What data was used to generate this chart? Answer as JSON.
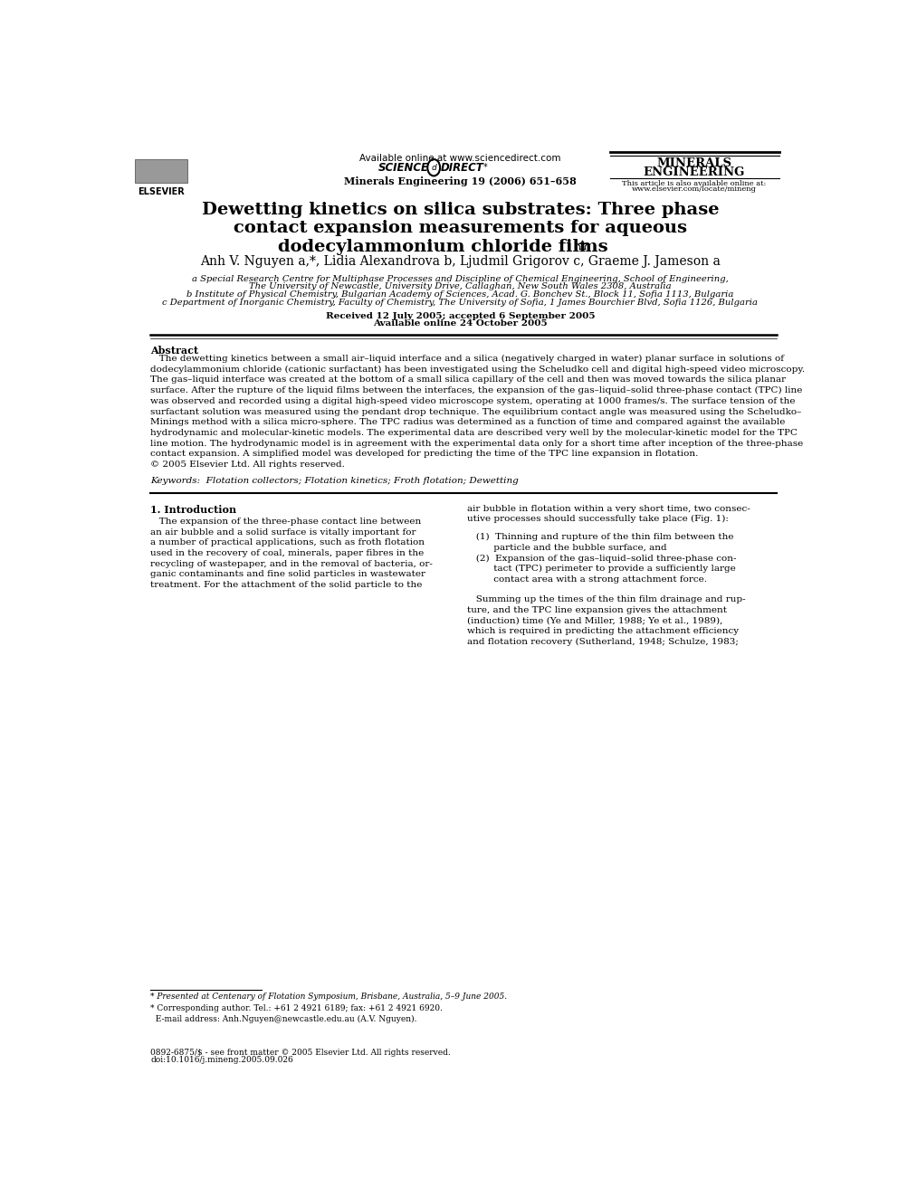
{
  "fig_width": 9.92,
  "fig_height": 13.23,
  "bg_color": "#ffffff",
  "header": {
    "available_online": "Available online at www.sciencedirect.com",
    "journal_info": "Minerals Engineering 19 (2006) 651–658",
    "journal_name_line1": "MINERALS",
    "journal_name_line2": "ENGINEERING",
    "also_available": "This article is also available online at:",
    "url": "www.elsevier.com/locate/mineng",
    "elsevier_text": "ELSEVIER"
  },
  "title_main": "Dewetting kinetics on silica substrates: Three phase",
  "title_line2": "contact expansion measurements for aqueous",
  "title_line3": "dodecylammonium chloride films",
  "authors": "Anh V. Nguyen a,*, Lidia Alexandrova b, Ljudmil Grigorov c, Graeme J. Jameson a",
  "affil_a": "a Special Research Centre for Multiphase Processes and Discipline of Chemical Engineering, School of Engineering,",
  "affil_a2": "The University of Newcastle, University Drive, Callaghan, New South Wales 2308, Australia",
  "affil_b": "b Institute of Physical Chemistry, Bulgarian Academy of Sciences, Acad. G. Bonchev St., Block 11, Sofia 1113, Bulgaria",
  "affil_c": "c Department of Inorganic Chemistry, Faculty of Chemistry, The University of Sofia, 1 James Bourchier Blvd, Sofia 1126, Bulgaria",
  "received": "Received 12 July 2005; accepted 6 September 2005",
  "available_online_date": "Available online 24 October 2005",
  "abstract_title": "Abstract",
  "abstract_text": "The dewetting kinetics between a small air–liquid interface and a silica (negatively charged in water) planar surface in solutions of dodecylammonium chloride (cationic surfactant) has been investigated using the Scheludko cell and digital high-speed video microscopy. The gas–liquid interface was created at the bottom of a small silica capillary of the cell and then was moved towards the silica planar surface. After the rupture of the liquid films between the interfaces, the expansion of the gas–liquid–solid three-phase contact (TPC) line was observed and recorded using a digital high-speed video microscope system, operating at 1000 frames/s. The surface tension of the surfactant solution was measured using the pendant drop technique. The equilibrium contact angle was measured using the Scheludko–Minings method with a silica micro-sphere. The TPC radius was determined as a function of time and compared against the available hydrodynamic and molecular-kinetic models. The experimental data are described very well by the molecular-kinetic model for the TPC line motion. The hydrodynamic model is in agreement with the experimental data only for a short time after inception of the three-phase contact expansion. A simplified model was developed for predicting the time of the TPC line expansion in flotation.\n© 2005 Elsevier Ltd. All rights reserved.",
  "keywords": "Keywords:  Flotation collectors; Flotation kinetics; Froth flotation; Dewetting",
  "section1_title": "1. Introduction",
  "section1_col1_para": "The expansion of the three-phase contact line between an air bubble and a solid surface is vitally important for a number of practical applications, such as froth flotation used in the recovery of coal, minerals, paper fibres in the recycling of wastepaper, and in the removal of bacteria, organic contaminants and fine solid particles in wastewater treatment. For the attachment of the solid particle to the",
  "section1_col2_intro": "air bubble in flotation within a very short time, two consecutive processes should successfully take place (Fig. 1):",
  "section1_item1": "(1)  Thinning and rupture of the thin film between the\n       particle and the bubble surface, and",
  "section1_item2": "(2)  Expansion of the gas–liquid–solid three-phase con-\n       tact (TPC) perimeter to provide a sufficiently large\n       contact area with a strong attachment force.",
  "section1_col2_cont": "Summing up the times of the thin film drainage and rupture, and the TPC line expansion gives the attachment (induction) time (Ye and Miller, 1988; Ye et al., 1989), which is required in predicting the attachment efficiency and flotation recovery (Sutherland, 1948; Schulze, 1983;",
  "footnote1": "* Presented at Centenary of Flotation Symposium, Brisbane, Australia, 5–9 June 2005.",
  "footnote2_line1": "* Corresponding author. Tel.: +61 2 4921 6189; fax: +61 2 4921 6920.",
  "footnote2_line2": "  E-mail address: Anh.Nguyen@newcastle.edu.au (A.V. Nguyen).",
  "footer_line1": "0892-6875/$ - see front matter © 2005 Elsevier Ltd. All rights reserved.",
  "footer_line2": "doi:10.1016/j.mineng.2005.09.026"
}
